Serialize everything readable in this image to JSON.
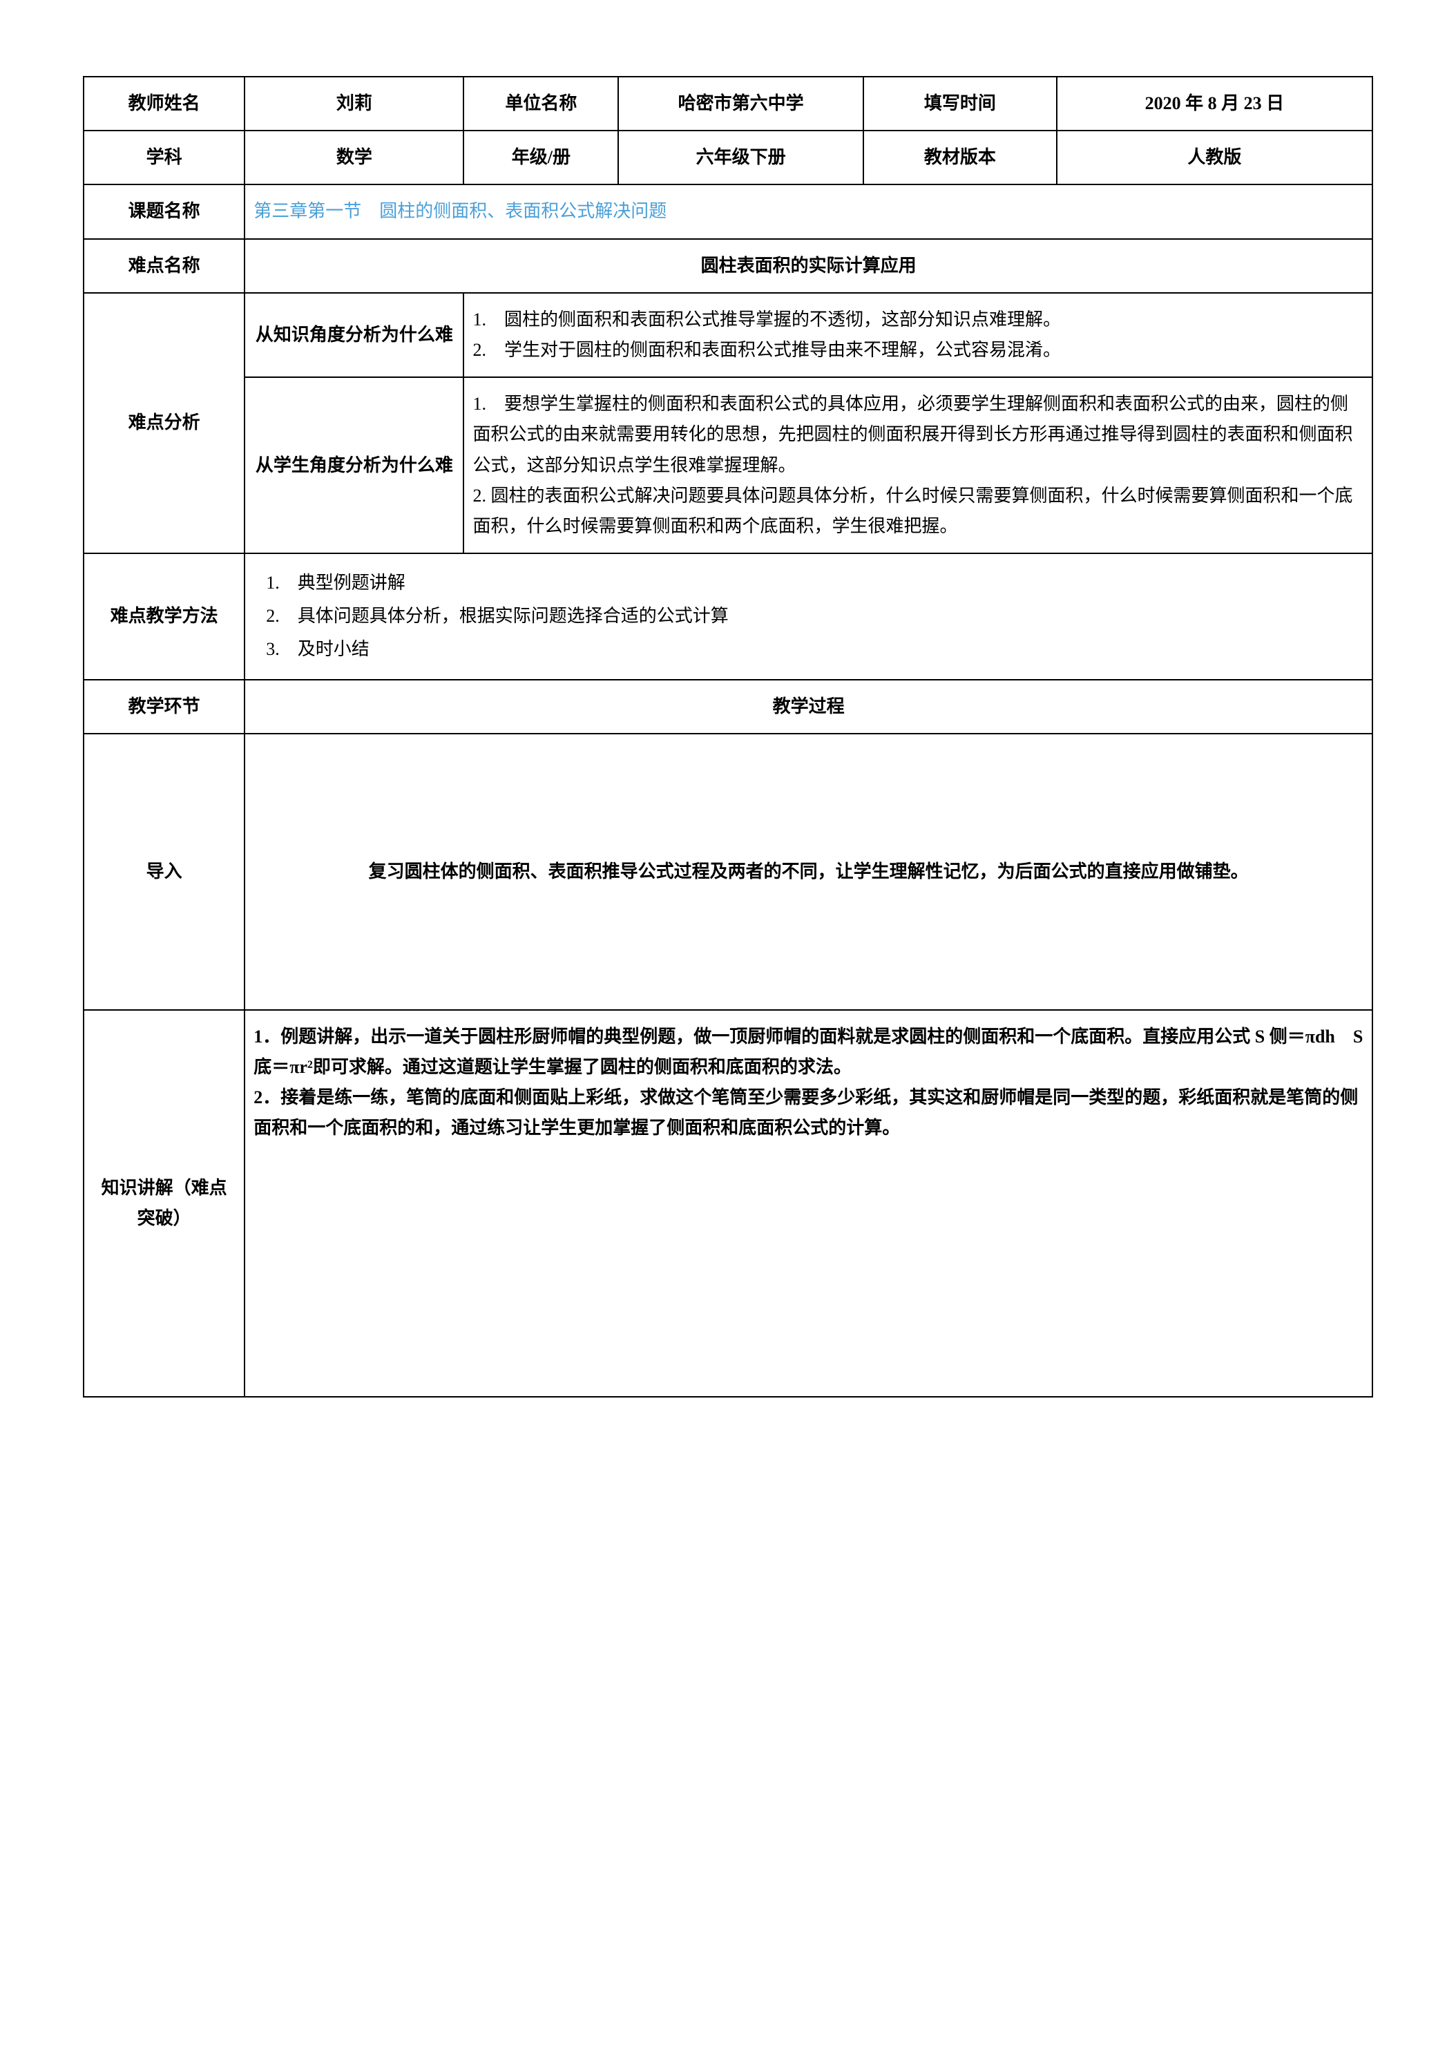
{
  "row1": {
    "teacher_name_label": "教师姓名",
    "teacher_name": "刘莉",
    "unit_label": "单位名称",
    "unit": "哈密市第六中学",
    "fill_time_label": "填写时间",
    "fill_time": "2020 年 8 月 23 日"
  },
  "row2": {
    "subject_label": "学科",
    "subject": "数学",
    "grade_label": "年级/册",
    "grade": "六年级下册",
    "textbook_label": "教材版本",
    "textbook": "人教版"
  },
  "row3": {
    "topic_label": "课题名称",
    "topic": "第三章第一节　圆柱的侧面积、表面积公式解决问题"
  },
  "row4": {
    "diff_name_label": "难点名称",
    "diff_name": "圆柱表面积的实际计算应用"
  },
  "analysis": {
    "label": "难点分析",
    "knowledge_label": "从知识角度分析为什么难",
    "knowledge_1": "1.　圆柱的侧面积和表面积公式推导掌握的不透彻，这部分知识点难理解。",
    "knowledge_2": "2.　学生对于圆柱的侧面积和表面积公式推导由来不理解，公式容易混淆。",
    "student_label": "从学生角度分析为什么难",
    "student_1": "1.　要想学生掌握柱的侧面积和表面积公式的具体应用，必须要学生理解侧面积和表面积公式的由来，圆柱的侧面积公式的由来就需要用转化的思想，先把圆柱的侧面积展开得到长方形再通过推导得到圆柱的表面积和侧面积公式，这部分知识点学生很难掌握理解。",
    "student_2": "2. 圆柱的表面积公式解决问题要具体问题具体分析，什么时候只需要算侧面积，什么时候需要算侧面积和一个底面积，什么时候需要算侧面积和两个底面积，学生很难把握。"
  },
  "method": {
    "label": "难点教学方法",
    "m1": "1.　典型例题讲解",
    "m2": "2.　具体问题具体分析，根据实际问题选择合适的公式计算",
    "m3": "3.　及时小结"
  },
  "process": {
    "env_label": "教学环节",
    "proc_label": "教学过程",
    "intro_label": "导入",
    "intro_text": "复习圆柱体的侧面积、表面积推导公式过程及两者的不同，让学生理解性记忆，为后面公式的直接应用做铺垫。",
    "explain_label": "知识讲解（难点突破）",
    "explain_1": "1．例题讲解，出示一道关于圆柱形厨师帽的典型例题，做一顶厨师帽的面料就是求圆柱的侧面积和一个底面积。直接应用公式 S 侧＝πdh　S 底＝πr²即可求解。通过这道题让学生掌握了圆柱的侧面积和底面积的求法。",
    "explain_2": "2．接着是练一练，笔筒的底面和侧面贴上彩纸，求做这个笔筒至少需要多少彩纸，其实这和厨师帽是同一类型的题，彩纸面积就是笔筒的侧面积和一个底面积的和，通过练习让学生更加掌握了侧面积和底面积公式的计算。"
  }
}
